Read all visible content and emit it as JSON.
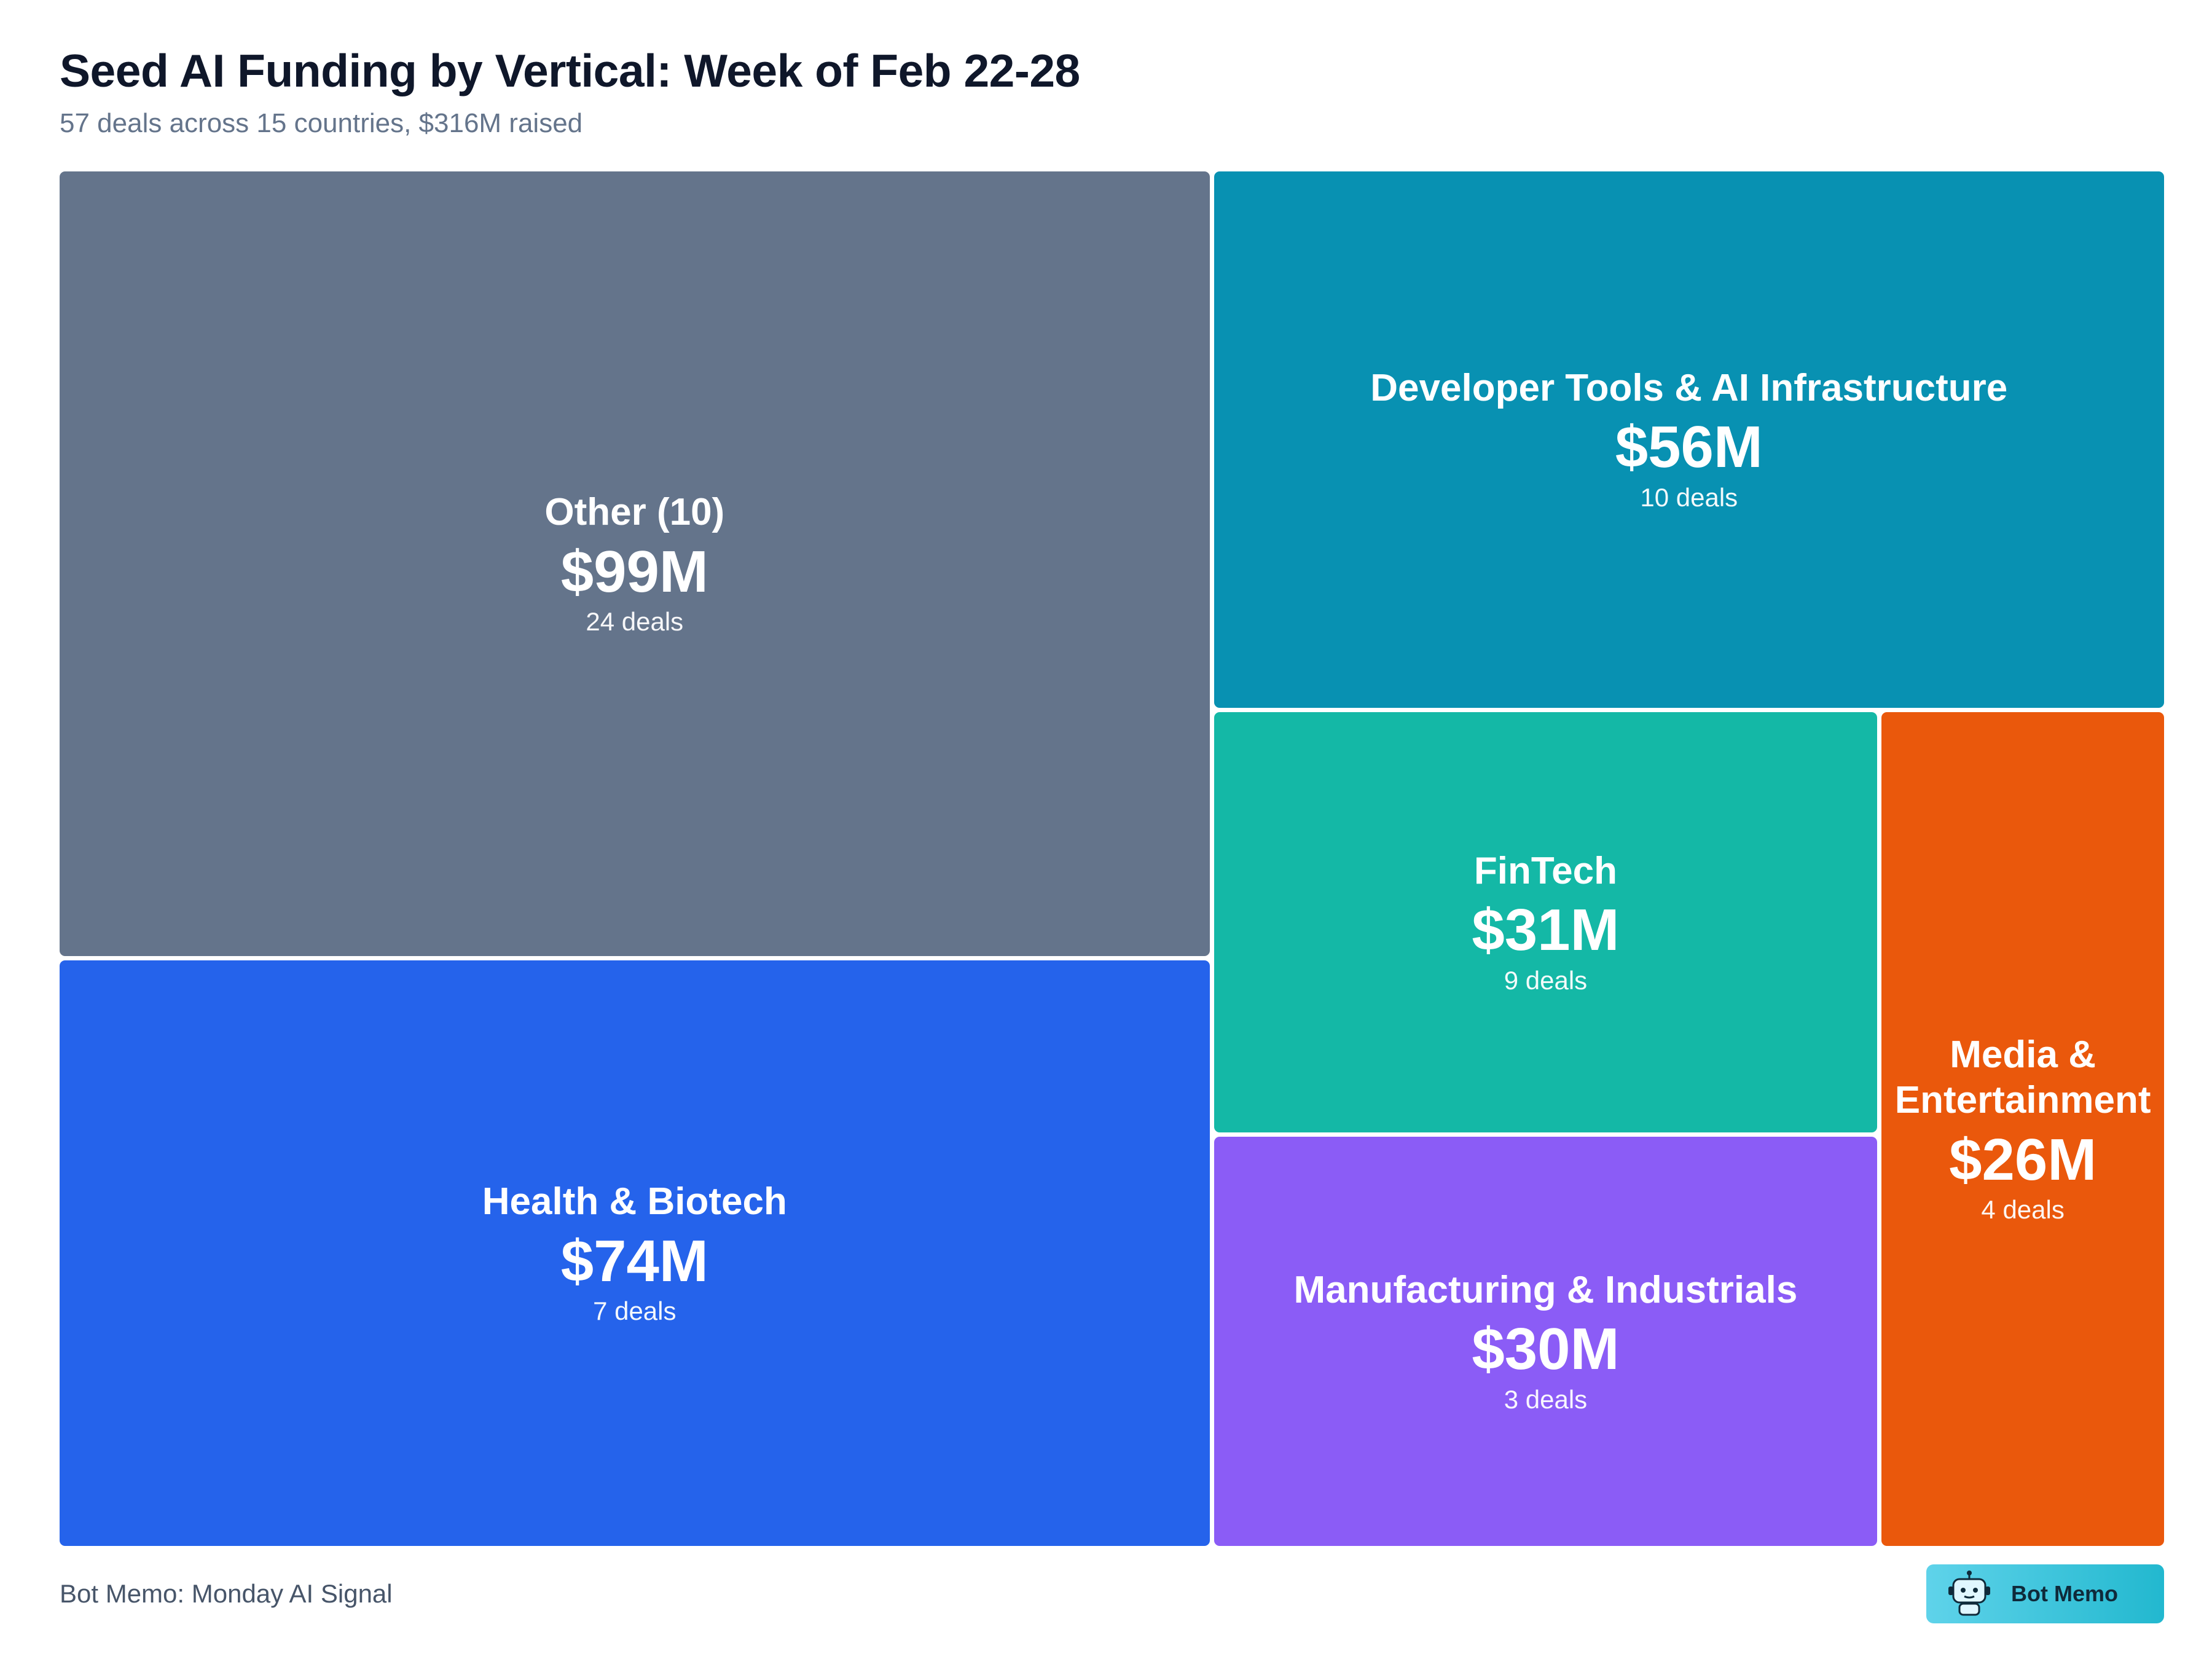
{
  "header": {
    "title": "Seed AI Funding by Vertical: Week of Feb 22-28",
    "subtitle": "57 deals across 15 countries, $316M raised"
  },
  "chart_data": {
    "type": "treemap",
    "title": "Seed AI Funding by Vertical: Week of Feb 22-28",
    "subtitle": "57 deals across 15 countries, $316M raised",
    "unit": "USD millions",
    "total_value": 316,
    "total_deals": 57,
    "countries": 15,
    "items": [
      {
        "label": "Other (10)",
        "value": 99,
        "value_label": "$99M",
        "deals": 24,
        "deals_label": "24 deals",
        "color": "#64748b"
      },
      {
        "label": "Health & Biotech",
        "value": 74,
        "value_label": "$74M",
        "deals": 7,
        "deals_label": "7 deals",
        "color": "#2563eb"
      },
      {
        "label": "Developer Tools & AI Infrastructure",
        "value": 56,
        "value_label": "$56M",
        "deals": 10,
        "deals_label": "10 deals",
        "color": "#0891b2"
      },
      {
        "label": "FinTech",
        "value": 31,
        "value_label": "$31M",
        "deals": 9,
        "deals_label": "9 deals",
        "color": "#14b8a6"
      },
      {
        "label": "Manufacturing & Industrials",
        "value": 30,
        "value_label": "$30M",
        "deals": 3,
        "deals_label": "3 deals",
        "color": "#8b5cf6"
      },
      {
        "label": "Media & Entertainment",
        "value": 26,
        "value_label": "$26M",
        "deals": 4,
        "deals_label": "4 deals",
        "color": "#ea580c"
      }
    ]
  },
  "footer": {
    "source": "Bot Memo: Monday AI Signal",
    "brand_label": "Bot Memo",
    "brand_icon": "robot-icon"
  }
}
